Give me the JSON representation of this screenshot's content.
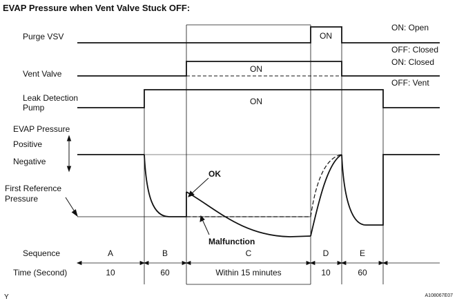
{
  "title": "EVAP Pressure when Vent Valve Stuck OFF:",
  "signals": {
    "purge_vsv": {
      "label": "Purge VSV",
      "on_text": "ON",
      "legend_on": "ON: Open",
      "legend_off": "OFF: Closed"
    },
    "vent_valve": {
      "label": "Vent Valve",
      "on_text": "ON",
      "legend_on": "ON: Closed",
      "legend_off": "OFF: Vent"
    },
    "leak_pump": {
      "label_line1": "Leak Detection",
      "label_line2": "Pump",
      "on_text": "ON"
    }
  },
  "pressure": {
    "label": "EVAP Pressure",
    "positive": "Positive",
    "negative": "Negative",
    "first_ref_line1": "First Reference",
    "first_ref_line2": "Pressure",
    "ok_label": "OK",
    "malfunction_label": "Malfunction"
  },
  "sequence": {
    "label": "Sequence",
    "time_label": "Time (Second)",
    "phases": [
      {
        "name": "A",
        "time": "10"
      },
      {
        "name": "B",
        "time": "60"
      },
      {
        "name": "C",
        "time": "Within 15 minutes"
      },
      {
        "name": "D",
        "time": "10"
      },
      {
        "name": "E",
        "time": "60"
      }
    ]
  },
  "footer": {
    "left": "Y",
    "right": "A108067E07"
  }
}
